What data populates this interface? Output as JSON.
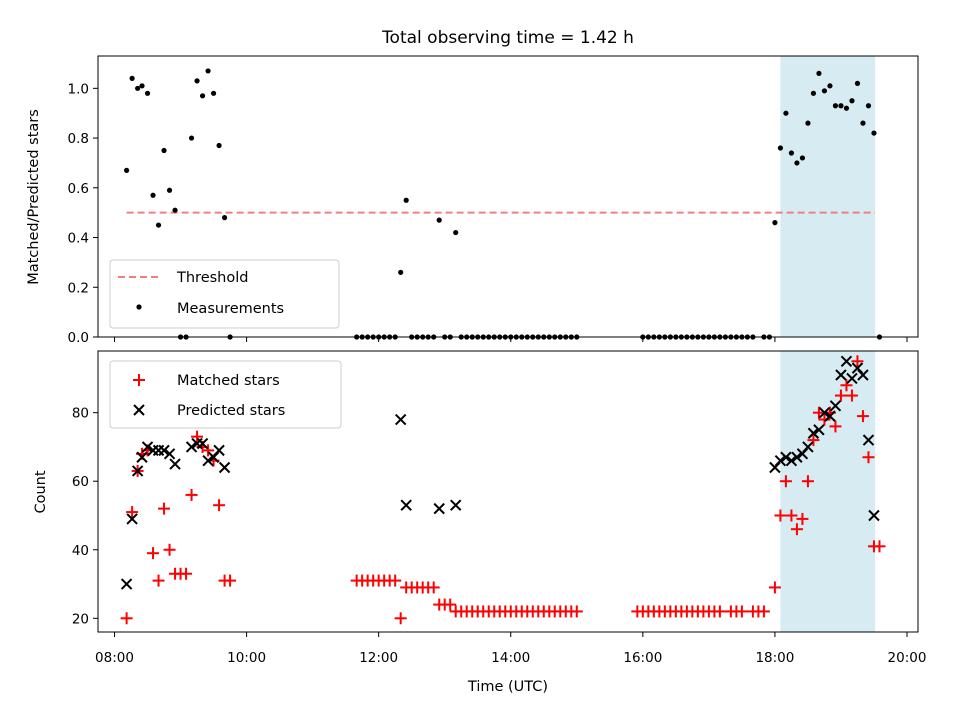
{
  "chart_data": [
    {
      "type": "scatter",
      "title": "Total observing time = 1.42 h",
      "xlabel": "",
      "ylabel": "Matched/Predicted stars",
      "xlim": [
        "07:45",
        "20:10"
      ],
      "ylim": [
        0,
        1.13
      ],
      "yticks": [
        "0.0",
        "0.2",
        "0.4",
        "0.6",
        "0.8",
        "1.0"
      ],
      "highlight_span": {
        "x_start": "18:05",
        "x_end": "19:31",
        "color": "#add8e6"
      },
      "legend": {
        "position": "lower-left",
        "entries": [
          "Threshold",
          "Measurements"
        ]
      },
      "threshold": {
        "name": "Threshold",
        "y": 0.5,
        "x_start": "08:11",
        "x_end": "19:31",
        "color": "#f08080",
        "style": "dashed"
      },
      "series": [
        {
          "name": "Measurements",
          "color": "#000000",
          "marker": "dot",
          "points": [
            [
              "08:11",
              0.67
            ],
            [
              "08:16",
              1.04
            ],
            [
              "08:21",
              1.0
            ],
            [
              "08:25",
              1.01
            ],
            [
              "08:30",
              0.98
            ],
            [
              "08:35",
              0.57
            ],
            [
              "08:40",
              0.45
            ],
            [
              "08:45",
              0.75
            ],
            [
              "08:50",
              0.59
            ],
            [
              "08:55",
              0.51
            ],
            [
              "09:00",
              0.0
            ],
            [
              "09:05",
              0.0
            ],
            [
              "09:10",
              0.8
            ],
            [
              "09:15",
              1.03
            ],
            [
              "09:20",
              0.97
            ],
            [
              "09:25",
              1.07
            ],
            [
              "09:30",
              0.98
            ],
            [
              "09:35",
              0.77
            ],
            [
              "09:40",
              0.48
            ],
            [
              "09:45",
              0.0
            ],
            [
              "11:40",
              0.0
            ],
            [
              "11:45",
              0.0
            ],
            [
              "11:50",
              0.0
            ],
            [
              "11:55",
              0.0
            ],
            [
              "12:00",
              0.0
            ],
            [
              "12:05",
              0.0
            ],
            [
              "12:10",
              0.0
            ],
            [
              "12:15",
              0.0
            ],
            [
              "12:20",
              0.26
            ],
            [
              "12:25",
              0.55
            ],
            [
              "12:30",
              0.0
            ],
            [
              "12:35",
              0.0
            ],
            [
              "12:40",
              0.0
            ],
            [
              "12:45",
              0.0
            ],
            [
              "12:50",
              0.0
            ],
            [
              "12:55",
              0.47
            ],
            [
              "13:00",
              0.0
            ],
            [
              "13:05",
              0.0
            ],
            [
              "13:10",
              0.42
            ],
            [
              "13:15",
              0.0
            ],
            [
              "13:20",
              0.0
            ],
            [
              "13:25",
              0.0
            ],
            [
              "13:30",
              0.0
            ],
            [
              "13:35",
              0.0
            ],
            [
              "13:40",
              0.0
            ],
            [
              "13:45",
              0.0
            ],
            [
              "13:50",
              0.0
            ],
            [
              "13:55",
              0.0
            ],
            [
              "14:00",
              0.0
            ],
            [
              "14:05",
              0.0
            ],
            [
              "14:10",
              0.0
            ],
            [
              "14:15",
              0.0
            ],
            [
              "14:20",
              0.0
            ],
            [
              "14:25",
              0.0
            ],
            [
              "14:30",
              0.0
            ],
            [
              "14:35",
              0.0
            ],
            [
              "14:40",
              0.0
            ],
            [
              "14:45",
              0.0
            ],
            [
              "14:50",
              0.0
            ],
            [
              "14:55",
              0.0
            ],
            [
              "15:00",
              0.0
            ],
            [
              "16:00",
              0.0
            ],
            [
              "16:05",
              0.0
            ],
            [
              "16:10",
              0.0
            ],
            [
              "16:15",
              0.0
            ],
            [
              "16:20",
              0.0
            ],
            [
              "16:25",
              0.0
            ],
            [
              "16:30",
              0.0
            ],
            [
              "16:35",
              0.0
            ],
            [
              "16:40",
              0.0
            ],
            [
              "16:45",
              0.0
            ],
            [
              "16:50",
              0.0
            ],
            [
              "16:55",
              0.0
            ],
            [
              "17:00",
              0.0
            ],
            [
              "17:05",
              0.0
            ],
            [
              "17:10",
              0.0
            ],
            [
              "17:15",
              0.0
            ],
            [
              "17:20",
              0.0
            ],
            [
              "17:25",
              0.0
            ],
            [
              "17:30",
              0.0
            ],
            [
              "17:35",
              0.0
            ],
            [
              "17:40",
              0.0
            ],
            [
              "17:50",
              0.0
            ],
            [
              "17:55",
              0.0
            ],
            [
              "18:00",
              0.46
            ],
            [
              "18:05",
              0.76
            ],
            [
              "18:10",
              0.9
            ],
            [
              "18:15",
              0.74
            ],
            [
              "18:20",
              0.7
            ],
            [
              "18:25",
              0.72
            ],
            [
              "18:30",
              0.86
            ],
            [
              "18:35",
              0.98
            ],
            [
              "18:40",
              1.06
            ],
            [
              "18:45",
              0.99
            ],
            [
              "18:50",
              1.01
            ],
            [
              "18:55",
              0.93
            ],
            [
              "19:00",
              0.93
            ],
            [
              "19:05",
              0.92
            ],
            [
              "19:10",
              0.95
            ],
            [
              "19:15",
              1.02
            ],
            [
              "19:20",
              0.86
            ],
            [
              "19:25",
              0.93
            ],
            [
              "19:30",
              0.82
            ],
            [
              "19:35",
              0.0
            ]
          ]
        }
      ]
    },
    {
      "type": "scatter",
      "title": "",
      "xlabel": "Time (UTC)",
      "ylabel": "Count",
      "xlim": [
        "07:45",
        "20:10"
      ],
      "ylim": [
        16,
        98
      ],
      "xticks": [
        "08:00",
        "10:00",
        "12:00",
        "14:00",
        "16:00",
        "18:00",
        "20:00"
      ],
      "yticks": [
        "20",
        "40",
        "60",
        "80"
      ],
      "highlight_span": {
        "x_start": "18:05",
        "x_end": "19:31",
        "color": "#add8e6"
      },
      "legend": {
        "position": "upper-left",
        "entries": [
          "Matched stars",
          "Predicted stars"
        ]
      },
      "series": [
        {
          "name": "Matched stars",
          "color": "#ff0000",
          "marker": "plus",
          "points": [
            [
              "08:11",
              20
            ],
            [
              "08:16",
              51
            ],
            [
              "08:21",
              63
            ],
            [
              "08:25",
              68
            ],
            [
              "08:30",
              69
            ],
            [
              "08:35",
              39
            ],
            [
              "08:40",
              31
            ],
            [
              "08:45",
              52
            ],
            [
              "08:50",
              40
            ],
            [
              "08:55",
              33
            ],
            [
              "09:00",
              33
            ],
            [
              "09:05",
              33
            ],
            [
              "09:10",
              56
            ],
            [
              "09:15",
              73
            ],
            [
              "09:20",
              70
            ],
            [
              "09:25",
              69
            ],
            [
              "09:30",
              66
            ],
            [
              "09:35",
              53
            ],
            [
              "09:40",
              31
            ],
            [
              "09:45",
              31
            ],
            [
              "11:40",
              31
            ],
            [
              "11:45",
              31
            ],
            [
              "11:50",
              31
            ],
            [
              "11:55",
              31
            ],
            [
              "12:00",
              31
            ],
            [
              "12:05",
              31
            ],
            [
              "12:10",
              31
            ],
            [
              "12:15",
              31
            ],
            [
              "12:20",
              20
            ],
            [
              "12:25",
              29
            ],
            [
              "12:30",
              29
            ],
            [
              "12:35",
              29
            ],
            [
              "12:40",
              29
            ],
            [
              "12:45",
              29
            ],
            [
              "12:50",
              29
            ],
            [
              "12:55",
              24
            ],
            [
              "13:00",
              24
            ],
            [
              "13:05",
              24
            ],
            [
              "13:10",
              22
            ],
            [
              "13:15",
              22
            ],
            [
              "13:20",
              22
            ],
            [
              "13:25",
              22
            ],
            [
              "13:30",
              22
            ],
            [
              "13:35",
              22
            ],
            [
              "13:40",
              22
            ],
            [
              "13:45",
              22
            ],
            [
              "13:50",
              22
            ],
            [
              "13:55",
              22
            ],
            [
              "14:00",
              22
            ],
            [
              "14:05",
              22
            ],
            [
              "14:10",
              22
            ],
            [
              "14:15",
              22
            ],
            [
              "14:20",
              22
            ],
            [
              "14:25",
              22
            ],
            [
              "14:30",
              22
            ],
            [
              "14:35",
              22
            ],
            [
              "14:40",
              22
            ],
            [
              "14:45",
              22
            ],
            [
              "14:50",
              22
            ],
            [
              "14:55",
              22
            ],
            [
              "15:00",
              22
            ],
            [
              "15:55",
              22
            ],
            [
              "16:00",
              22
            ],
            [
              "16:05",
              22
            ],
            [
              "16:10",
              22
            ],
            [
              "16:15",
              22
            ],
            [
              "16:20",
              22
            ],
            [
              "16:25",
              22
            ],
            [
              "16:30",
              22
            ],
            [
              "16:35",
              22
            ],
            [
              "16:40",
              22
            ],
            [
              "16:45",
              22
            ],
            [
              "16:50",
              22
            ],
            [
              "16:55",
              22
            ],
            [
              "17:00",
              22
            ],
            [
              "17:05",
              22
            ],
            [
              "17:10",
              22
            ],
            [
              "17:20",
              22
            ],
            [
              "17:25",
              22
            ],
            [
              "17:30",
              22
            ],
            [
              "17:40",
              22
            ],
            [
              "17:45",
              22
            ],
            [
              "17:50",
              22
            ],
            [
              "18:00",
              29
            ],
            [
              "18:05",
              50
            ],
            [
              "18:10",
              60
            ],
            [
              "18:15",
              50
            ],
            [
              "18:20",
              46
            ],
            [
              "18:25",
              49
            ],
            [
              "18:30",
              60
            ],
            [
              "18:35",
              72
            ],
            [
              "18:40",
              80
            ],
            [
              "18:45",
              78
            ],
            [
              "18:50",
              80
            ],
            [
              "18:55",
              76
            ],
            [
              "19:00",
              85
            ],
            [
              "19:05",
              88
            ],
            [
              "19:10",
              85
            ],
            [
              "19:15",
              95
            ],
            [
              "19:20",
              79
            ],
            [
              "19:25",
              67
            ],
            [
              "19:30",
              41
            ],
            [
              "19:35",
              41
            ]
          ]
        },
        {
          "name": "Predicted stars",
          "color": "#000000",
          "marker": "x",
          "points": [
            [
              "08:11",
              30
            ],
            [
              "08:16",
              49
            ],
            [
              "08:21",
              63
            ],
            [
              "08:25",
              67
            ],
            [
              "08:30",
              70
            ],
            [
              "08:35",
              69
            ],
            [
              "08:40",
              69
            ],
            [
              "08:45",
              69
            ],
            [
              "08:50",
              68
            ],
            [
              "08:55",
              65
            ],
            [
              "09:10",
              70
            ],
            [
              "09:15",
              71
            ],
            [
              "09:20",
              71
            ],
            [
              "09:25",
              66
            ],
            [
              "09:30",
              67
            ],
            [
              "09:35",
              69
            ],
            [
              "09:40",
              64
            ],
            [
              "12:20",
              78
            ],
            [
              "12:25",
              53
            ],
            [
              "12:55",
              52
            ],
            [
              "13:10",
              53
            ],
            [
              "18:00",
              64
            ],
            [
              "18:05",
              66
            ],
            [
              "18:10",
              67
            ],
            [
              "18:15",
              66
            ],
            [
              "18:20",
              67
            ],
            [
              "18:25",
              68
            ],
            [
              "18:30",
              70
            ],
            [
              "18:35",
              74
            ],
            [
              "18:40",
              75
            ],
            [
              "18:45",
              80
            ],
            [
              "18:50",
              79
            ],
            [
              "18:55",
              82
            ],
            [
              "19:00",
              91
            ],
            [
              "19:05",
              95
            ],
            [
              "19:10",
              90
            ],
            [
              "19:15",
              93
            ],
            [
              "19:20",
              91
            ],
            [
              "19:25",
              72
            ],
            [
              "19:30",
              50
            ]
          ]
        }
      ]
    }
  ]
}
